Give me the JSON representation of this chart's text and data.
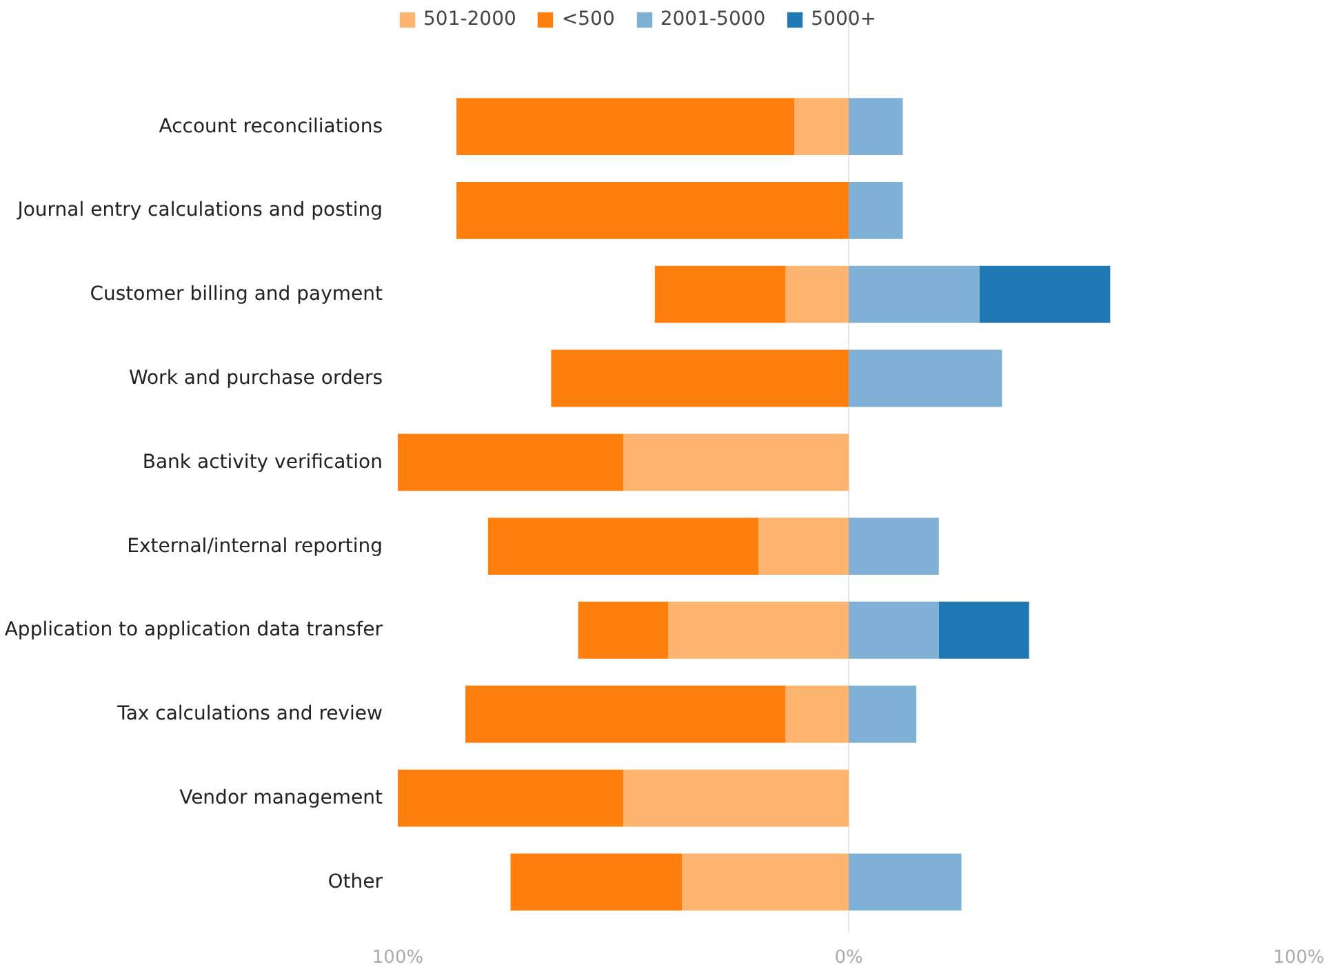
{
  "chart_data": {
    "type": "bar",
    "orientation": "horizontal",
    "stacked": true,
    "categories": [
      "Account reconciliations",
      "Journal entry calculations and posting",
      "Customer billing and payment",
      "Work and purchase orders",
      "Bank activity verification",
      "External/internal reporting",
      "Application to application data transfer",
      "Tax calculations and review",
      "Vendor management",
      "Other"
    ],
    "series": [
      {
        "name": "501-2000",
        "color": "#fdb46e",
        "values": [
          -12,
          0,
          -14,
          0,
          -50,
          -20,
          -40,
          -14,
          -50,
          -37
        ]
      },
      {
        "name": "<500",
        "color": "#ff7f0e",
        "values": [
          -75,
          -87,
          -29,
          -66,
          -50,
          -60,
          -20,
          -71,
          -50,
          -38
        ]
      },
      {
        "name": "2001-5000",
        "color": "#7fb0d5",
        "values": [
          12,
          12,
          29,
          34,
          0,
          20,
          20,
          15,
          0,
          25
        ]
      },
      {
        "name": "5000+",
        "color": "#1f77b4",
        "values": [
          0,
          0,
          29,
          0,
          0,
          0,
          20,
          0,
          0,
          0
        ]
      }
    ],
    "xlim": [
      -100,
      100
    ],
    "xticks": [
      {
        "value": -100,
        "label": "100%"
      },
      {
        "value": 0,
        "label": "0%"
      },
      {
        "value": 100,
        "label": "100%"
      }
    ],
    "grid": "x",
    "legend": "top left"
  }
}
